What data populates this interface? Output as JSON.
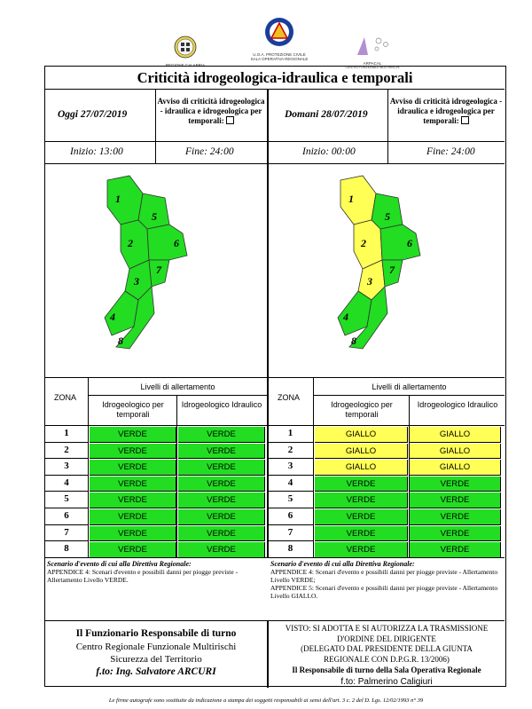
{
  "logos": {
    "calabria": "REGIONE CALABRIA",
    "pc_line1": "U.O.A. PROTEZIONE CIVILE",
    "pc_line2": "SALA OPERATIVA REGIONALE",
    "arpacal": "ARPACAL",
    "arpacal_sub": "CENTRO FUNZIONALE MULTIRISCHI"
  },
  "title": "Criticità idrogeologica-idraulica e temporali",
  "today": {
    "date": "Oggi 27/07/2019",
    "avviso": "Avviso di criticità idrogeologica - idraulica e idrogeologica per temporali:",
    "start": "Inizio: 13:00",
    "end": "Fine: 24:00"
  },
  "tomorrow": {
    "date": "Domani 28/07/2019",
    "avviso": "Avviso di criticità idrogeologica - idraulica e idrogeologica per temporali:",
    "start": "Inizio: 00:00",
    "end": "Fine: 24:00"
  },
  "map_labels": [
    "1",
    "2",
    "3",
    "4",
    "5",
    "6",
    "7",
    "8"
  ],
  "colors": {
    "verde": "#22dd22",
    "giallo": "#ffff55"
  },
  "table": {
    "zona": "ZONA",
    "levels": "Livelli di allertamento",
    "col1": "Idrogeologico per temporali",
    "col2": "Idrogeologico Idraulico"
  },
  "rows_today": [
    {
      "z": "1",
      "a": "VERDE",
      "b": "VERDE"
    },
    {
      "z": "2",
      "a": "VERDE",
      "b": "VERDE"
    },
    {
      "z": "3",
      "a": "VERDE",
      "b": "VERDE"
    },
    {
      "z": "4",
      "a": "VERDE",
      "b": "VERDE"
    },
    {
      "z": "5",
      "a": "VERDE",
      "b": "VERDE"
    },
    {
      "z": "6",
      "a": "VERDE",
      "b": "VERDE"
    },
    {
      "z": "7",
      "a": "VERDE",
      "b": "VERDE"
    },
    {
      "z": "8",
      "a": "VERDE",
      "b": "VERDE"
    }
  ],
  "rows_tomorrow": [
    {
      "z": "1",
      "a": "GIALLO",
      "b": "GIALLO"
    },
    {
      "z": "2",
      "a": "GIALLO",
      "b": "GIALLO"
    },
    {
      "z": "3",
      "a": "GIALLO",
      "b": "GIALLO"
    },
    {
      "z": "4",
      "a": "VERDE",
      "b": "VERDE"
    },
    {
      "z": "5",
      "a": "VERDE",
      "b": "VERDE"
    },
    {
      "z": "6",
      "a": "VERDE",
      "b": "VERDE"
    },
    {
      "z": "7",
      "a": "VERDE",
      "b": "VERDE"
    },
    {
      "z": "8",
      "a": "VERDE",
      "b": "VERDE"
    }
  ],
  "scenario": {
    "heading": "Scenario d'evento di cui alla Direttiva Regionale:",
    "today_1": "APPENDICE 4: Scenari d'evento e possibili danni per piogge previste - Allertamento Livello VERDE.",
    "tomorrow_1": "APPENDICE 4: Scenari d'evento e possibili danni per piogge previste - Allertamento Livello VERDE;",
    "tomorrow_2": "APPENDICE 5: Scenari d'evento e possibili danni per piogge previste - Allertamento Livello GIALLO."
  },
  "signature_left": {
    "l1": "Il Funzionario Responsabile di turno",
    "l2": "Centro Regionale Funzionale Multirischi",
    "l3": "Sicurezza del Territorio",
    "l4": "f.to: Ing. Salvatore ARCURI"
  },
  "signature_right": {
    "l1": "VISTO: SI ADOTTA E SI AUTORIZZA LA TRASMISSIONE",
    "l2": "D'ORDINE DEL DIRIGENTE",
    "l3": "(DELEGATO DAL PRESIDENTE DELLA GIUNTA",
    "l4": "REGIONALE CON D.P.G.R. 13/2006)",
    "l5": "Il Responsabile di turno della Sala Operativa Regionale",
    "l6": "f.to: Palmerino Caligiuri"
  },
  "footer": "Le firme autografe sono sostituite da indicazione a stampa dei soggetti responsabili ai sensi dell'art. 3 c. 2 del D. Lgs. 12/02/1993 n° 39"
}
